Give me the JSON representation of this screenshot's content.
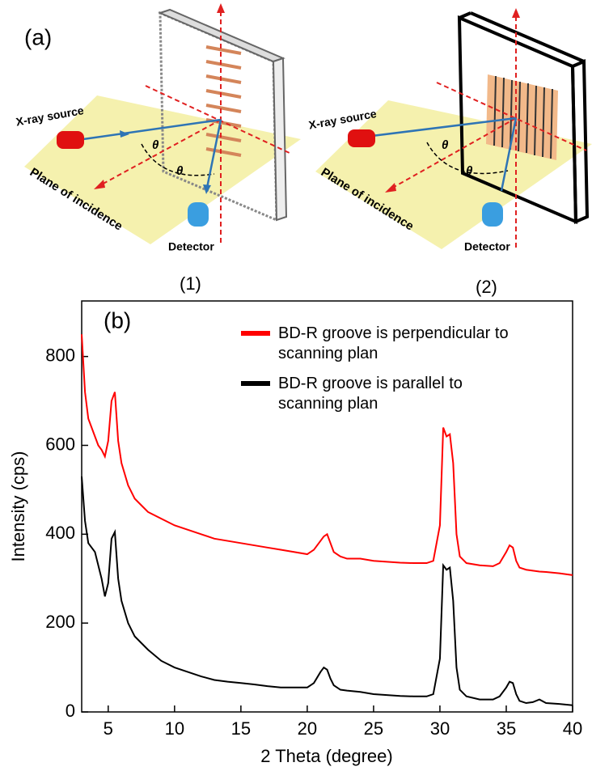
{
  "panel_a": {
    "label": "(a)",
    "diagrams": [
      {
        "source": "X-ray source",
        "plane": "Plane of incidence",
        "detector": "Detector",
        "theta": "θ",
        "caption": "(1)"
      },
      {
        "source": "X-ray source",
        "plane": "Plane of incidence",
        "detector": "Detector",
        "theta": "θ",
        "caption": "(2)"
      }
    ]
  },
  "chart_data": {
    "type": "line",
    "panel_label": "(b)",
    "x_label": "2 Theta (degree)",
    "y_label": "Intensity (cps)",
    "xlim": [
      3,
      40
    ],
    "ylim": [
      0,
      925
    ],
    "xticks": [
      5,
      10,
      15,
      20,
      25,
      30,
      35,
      40
    ],
    "yticks": [
      0,
      200,
      400,
      600,
      800
    ],
    "x": [
      3,
      3.25,
      3.5,
      3.75,
      4,
      4.25,
      4.5,
      4.75,
      5,
      5.25,
      5.5,
      5.75,
      6,
      6.5,
      7,
      7.5,
      8,
      9,
      10,
      11,
      12,
      13,
      14,
      15,
      16,
      17,
      18,
      19,
      20,
      20.5,
      21,
      21.25,
      21.5,
      21.75,
      22,
      22.5,
      23,
      24,
      25,
      26,
      27,
      28,
      29,
      29.5,
      30,
      30.25,
      30.5,
      30.75,
      31,
      31.25,
      31.5,
      32,
      33,
      34,
      34.5,
      35,
      35.25,
      35.5,
      35.75,
      36,
      36.5,
      37,
      37.5,
      38,
      39,
      40
    ],
    "series": [
      {
        "name": "BD-R groove is perpendicular to scanning plan",
        "color": "#ff0000",
        "values": [
          850,
          720,
          660,
          640,
          620,
          600,
          590,
          575,
          610,
          700,
          720,
          610,
          560,
          510,
          480,
          465,
          450,
          435,
          420,
          410,
          400,
          390,
          385,
          380,
          375,
          370,
          365,
          360,
          355,
          365,
          385,
          395,
          400,
          380,
          360,
          350,
          345,
          345,
          340,
          338,
          336,
          335,
          335,
          340,
          420,
          640,
          620,
          625,
          560,
          400,
          350,
          335,
          330,
          328,
          335,
          360,
          375,
          370,
          340,
          325,
          320,
          318,
          316,
          315,
          312,
          308
        ]
      },
      {
        "name": "BD-R groove is parallel to scanning plan",
        "color": "#000000",
        "values": [
          530,
          430,
          380,
          370,
          360,
          330,
          300,
          260,
          290,
          390,
          405,
          300,
          250,
          200,
          170,
          155,
          140,
          115,
          100,
          90,
          80,
          72,
          68,
          65,
          62,
          58,
          55,
          55,
          55,
          65,
          90,
          100,
          95,
          75,
          60,
          50,
          48,
          45,
          40,
          38,
          36,
          35,
          35,
          40,
          120,
          330,
          320,
          325,
          250,
          100,
          50,
          35,
          28,
          28,
          35,
          55,
          68,
          65,
          40,
          25,
          20,
          22,
          28,
          20,
          18,
          15
        ]
      }
    ]
  }
}
